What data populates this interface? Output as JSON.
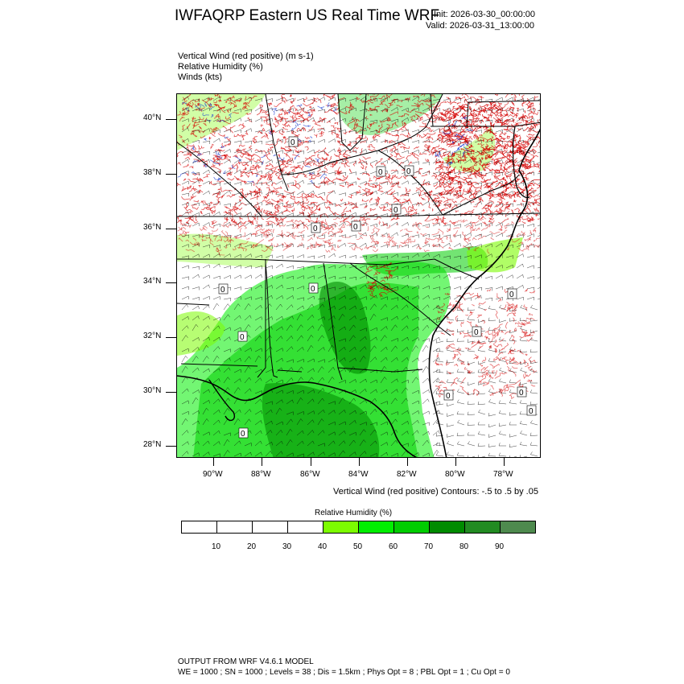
{
  "header": {
    "title": "IWFAQRP Eastern US Real Time WRF",
    "init": "Init: 2026-03-30_00:00:00",
    "valid": "Valid: 2026-03-31_13:00:00"
  },
  "fields": [
    "Vertical Wind (red positive)   (m s-1)",
    "Relative Humidity   (%)",
    "Winds   (kts)"
  ],
  "map": {
    "projection_region": "Southeastern United States",
    "lat_labels": [
      "40°N",
      "38°N",
      "36°N",
      "34°N",
      "32°N",
      "30°N",
      "28°N"
    ],
    "lon_labels": [
      "90°W",
      "88°W",
      "86°W",
      "84°W",
      "82°W",
      "80°W",
      "78°W"
    ],
    "contour_labels": [
      "0",
      "0",
      "0",
      "0",
      "0",
      "0",
      "0",
      "0",
      "0",
      "0",
      "0",
      "0",
      "0",
      "0",
      "0"
    ],
    "colors": {
      "updraft": "#d40000",
      "downdraft": "#2040d0",
      "barbs": "#000000",
      "land_outline": "#000000"
    }
  },
  "contours_note": "Vertical Wind (red positive) Contours: -.5 to .5 by .05",
  "colorbar": {
    "title": "Relative Humidity  (%)",
    "labels": [
      "10",
      "20",
      "30",
      "40",
      "50",
      "60",
      "70",
      "80",
      "90"
    ],
    "colors": [
      "#ffffff",
      "#ffffff",
      "#ffffff",
      "#ffffff",
      "#7cfc00",
      "#00ee00",
      "#00cd00",
      "#008b00",
      "#228b22",
      "#4e8a4e"
    ]
  },
  "footer": {
    "line1": "OUTPUT FROM WRF V4.6.1 MODEL",
    "line2": "WE = 1000 ; SN = 1000 ; Levels = 38 ; Dis = 1.5km ; Phys Opt = 8 ; PBL Opt = 1 ; Cu Opt = 0"
  }
}
